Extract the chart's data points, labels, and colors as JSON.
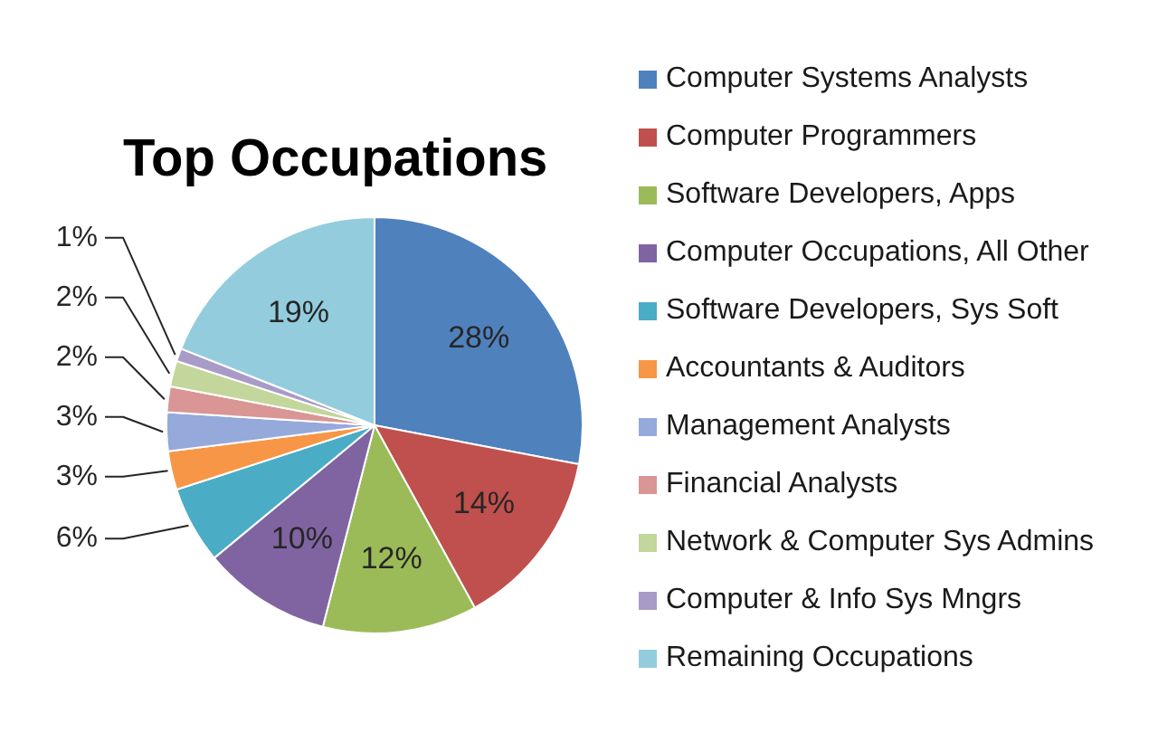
{
  "chart_data": {
    "type": "pie",
    "title": "Top Occupations",
    "categories": [
      "Computer Systems Analysts",
      "Computer Programmers",
      "Software Developers, Apps",
      "Computer Occupations, All Other",
      "Software Developers, Sys Soft",
      "Accountants & Auditors",
      "Management Analysts",
      "Financial Analysts",
      "Network & Computer Sys Admins",
      "Computer & Info Sys Mngrs",
      "Remaining Occupations"
    ],
    "values": [
      28,
      14,
      12,
      10,
      6,
      3,
      3,
      2,
      2,
      1,
      19
    ],
    "value_labels": [
      "28%",
      "14%",
      "12%",
      "10%",
      "6%",
      "3%",
      "3%",
      "2%",
      "2%",
      "1%",
      "19%"
    ],
    "colors": [
      "#4f81bd",
      "#c0504d",
      "#9bbb59",
      "#8064a2",
      "#4bacc6",
      "#f79646",
      "#95a9da",
      "#d99694",
      "#c3d69b",
      "#a99bc7",
      "#93cddd"
    ],
    "legend": "right"
  }
}
